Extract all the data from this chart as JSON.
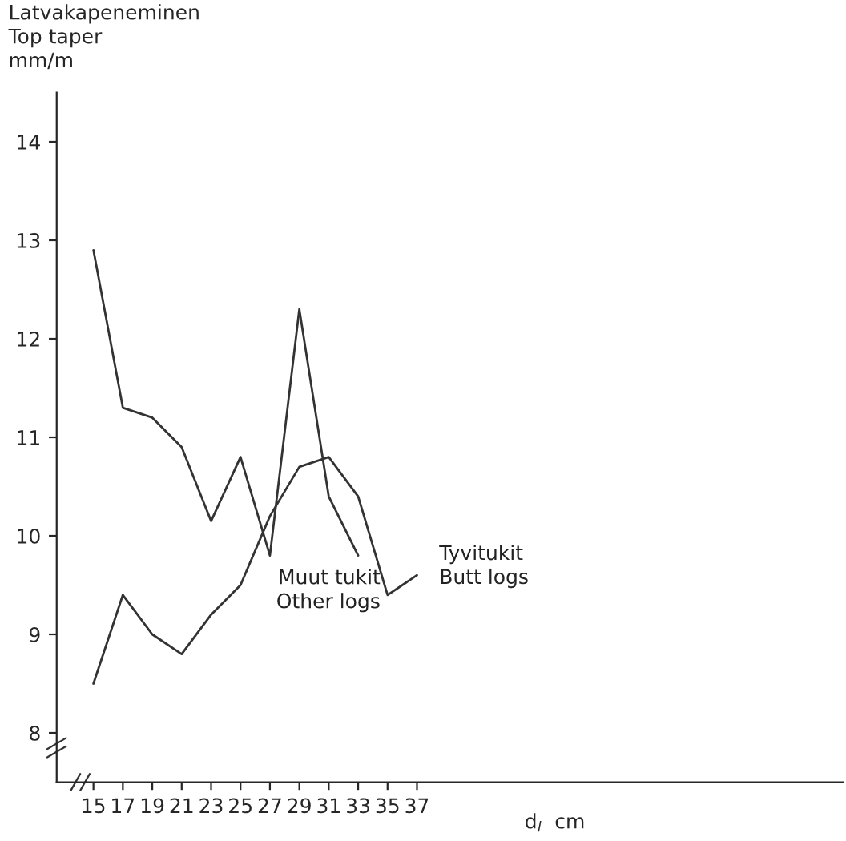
{
  "chart_data": {
    "type": "line",
    "ylabel": "Latvakapeneminen\nTop taper\nmm/m",
    "xlabel": "d$_{l}$  cm",
    "x": [
      15,
      17,
      19,
      21,
      23,
      25,
      27,
      29,
      31,
      33,
      35,
      37
    ],
    "series": [
      {
        "name": "Muut tukit\nOther logs",
        "color": "#333333",
        "values": [
          12.9,
          11.3,
          11.2,
          10.9,
          10.15,
          10.8,
          9.8,
          12.3,
          10.4,
          9.8,
          null,
          null
        ]
      },
      {
        "name": "Tyvitukit\nButt logs",
        "color": "#333333",
        "values": [
          8.5,
          9.4,
          9.0,
          8.8,
          9.2,
          9.5,
          10.2,
          10.7,
          10.8,
          10.4,
          9.4,
          9.6
        ]
      }
    ],
    "xlim": [
      12.5,
      66
    ],
    "xticks": [
      15,
      17,
      19,
      21,
      23,
      25,
      27,
      29,
      31,
      33,
      35,
      37
    ],
    "ylim": [
      7.5,
      14.5
    ],
    "yticks": [
      8,
      9,
      10,
      11,
      12,
      13,
      14
    ],
    "grid": false,
    "legend": false,
    "marker": "none",
    "line_style": "solid"
  }
}
